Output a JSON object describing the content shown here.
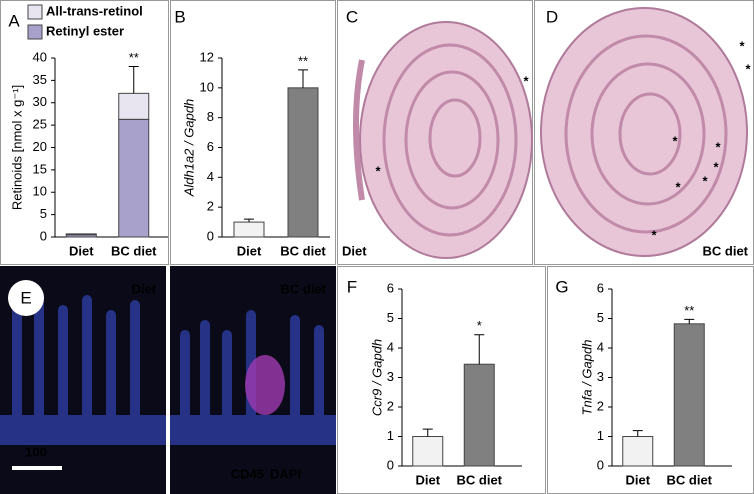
{
  "chart_data": [
    {
      "type": "stacked-bar",
      "panel": "A",
      "ylabel": "Retinoids [nmol x g⁻¹]",
      "categories": [
        "Diet",
        "BC diet"
      ],
      "series": [
        {
          "name": "Retinyl ester",
          "color": "#a7a1cb",
          "values": [
            0.5,
            26.3
          ],
          "errors": [
            null,
            null
          ]
        },
        {
          "name": "All-trans-retinol",
          "color": "#e8e4f0",
          "values": [
            0.2,
            5.8
          ],
          "errors": [
            null,
            6
          ]
        }
      ],
      "significance": [
        null,
        "**"
      ],
      "ylim": [
        0,
        40
      ],
      "yticks": [
        0,
        5,
        10,
        15,
        20,
        25,
        30,
        35,
        40
      ]
    },
    {
      "type": "bar",
      "panel": "B",
      "ylabel": "Aldh1a2 / Gapdh",
      "categories": [
        "Diet",
        "BC diet"
      ],
      "values": [
        1.0,
        10.0
      ],
      "errors": [
        0.2,
        1.2
      ],
      "colors": [
        "#f2f2f2",
        "#808080"
      ],
      "significance": [
        null,
        "**"
      ],
      "ylim": [
        0,
        12
      ],
      "yticks": [
        0,
        2,
        4,
        6,
        8,
        10,
        12
      ]
    },
    {
      "type": "bar",
      "panel": "F",
      "ylabel": "Ccr9 / Gapdh",
      "categories": [
        "Diet",
        "BC diet"
      ],
      "values": [
        1.0,
        3.45
      ],
      "errors": [
        0.25,
        1.0
      ],
      "colors": [
        "#f2f2f2",
        "#808080"
      ],
      "significance": [
        null,
        "*"
      ],
      "ylim": [
        0,
        6
      ],
      "yticks": [
        0,
        1,
        2,
        3,
        4,
        5,
        6
      ]
    },
    {
      "type": "bar",
      "panel": "G",
      "ylabel": "Tnfa / Gapdh",
      "categories": [
        "Diet",
        "BC diet"
      ],
      "values": [
        1.0,
        4.82
      ],
      "errors": [
        0.2,
        0.15
      ],
      "colors": [
        "#f2f2f2",
        "#808080"
      ],
      "significance": [
        null,
        "**"
      ],
      "ylim": [
        0,
        6
      ],
      "yticks": [
        0,
        1,
        2,
        3,
        4,
        5,
        6
      ]
    }
  ],
  "images": [
    {
      "panel": "C",
      "caption": "Diet",
      "markers": [
        "*",
        "*"
      ]
    },
    {
      "panel": "D",
      "caption": "BC diet",
      "markers": [
        "*",
        "*",
        "*",
        "*",
        "*",
        "*",
        "*",
        "*"
      ]
    },
    {
      "panel": "E",
      "captions": [
        "Diet",
        "BC diet"
      ],
      "scale": "100",
      "stains": [
        "CD45",
        "DAPI"
      ]
    }
  ]
}
